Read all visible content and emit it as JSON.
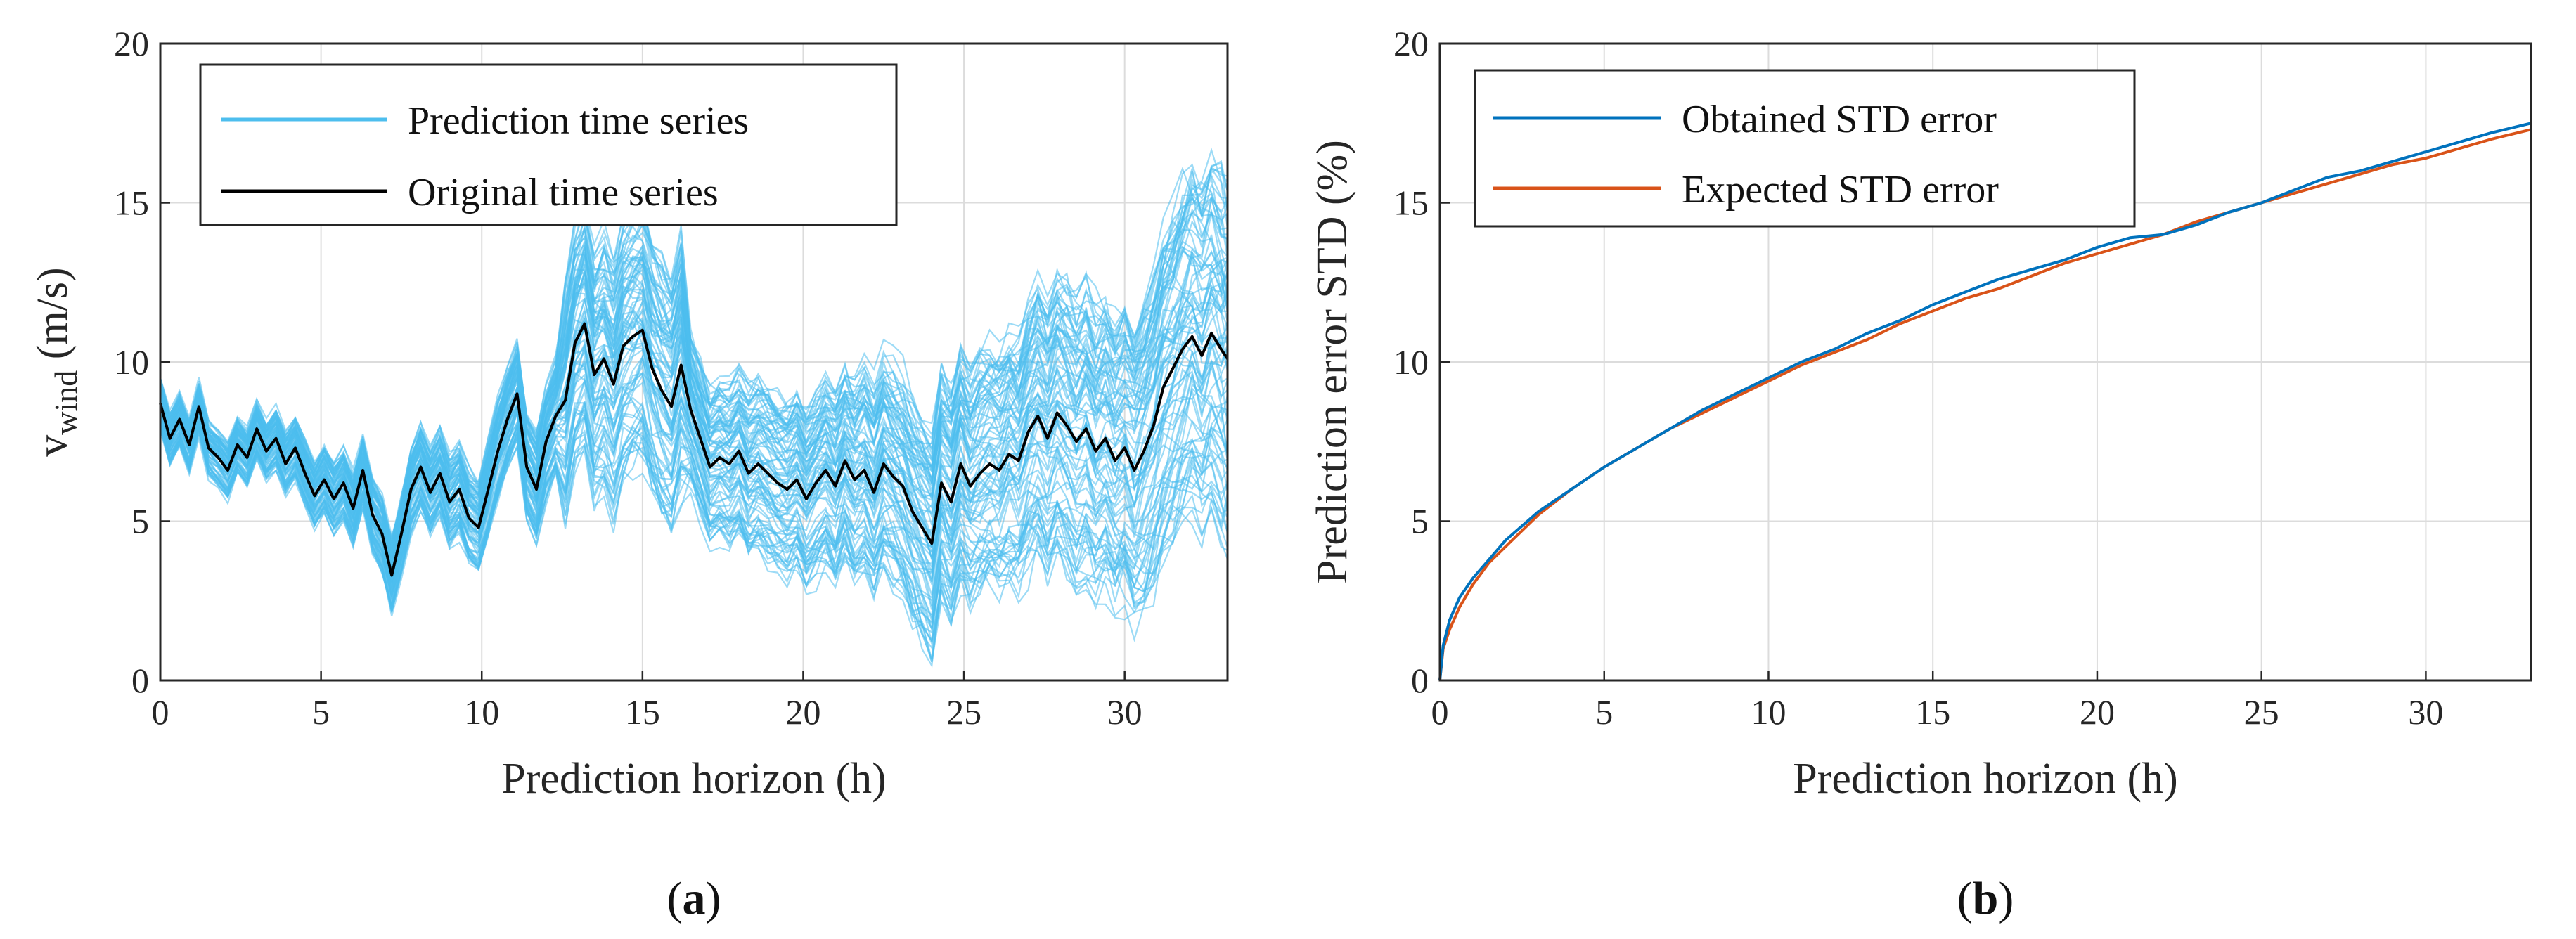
{
  "colors": {
    "prediction": "#4dbeee",
    "original": "#000000",
    "obtained": "#0072bd",
    "expected": "#d95319",
    "grid": "#dcdcdc",
    "axis": "#262626"
  },
  "chart_data": [
    {
      "type": "line",
      "panel_label": {
        "open": "(",
        "letter": "a",
        "close": ")"
      },
      "xlabel": "Prediction horizon (h)",
      "ylabel": {
        "main": "v",
        "sub": "wind",
        "unit": " (m/s)"
      },
      "xlim": [
        0,
        33.2
      ],
      "ylim": [
        0,
        20
      ],
      "xticks": [
        0,
        5,
        10,
        15,
        20,
        25,
        30
      ],
      "yticks": [
        0,
        5,
        10,
        15,
        20
      ],
      "grid": true,
      "legend_position": "top-left",
      "series": [
        {
          "name": "Prediction time series",
          "color_key": "prediction",
          "description_values": "ensemble of ~200 predicted trajectories spreading around the original series; spread grows with horizon (about +/-1 m/s near 0 h to +/-6 m/s near 33 h)"
        },
        {
          "name": "Original time series",
          "color_key": "original",
          "x": [
            0,
            0.3,
            0.6,
            0.9,
            1.2,
            1.5,
            1.8,
            2.1,
            2.4,
            2.7,
            3.0,
            3.3,
            3.6,
            3.9,
            4.2,
            4.5,
            4.8,
            5.1,
            5.4,
            5.7,
            6.0,
            6.3,
            6.6,
            6.9,
            7.2,
            7.5,
            7.8,
            8.1,
            8.4,
            8.7,
            9.0,
            9.3,
            9.6,
            9.9,
            10.2,
            10.5,
            10.8,
            11.1,
            11.4,
            11.7,
            12.0,
            12.3,
            12.6,
            12.9,
            13.2,
            13.5,
            13.8,
            14.1,
            14.4,
            14.7,
            15.0,
            15.3,
            15.6,
            15.9,
            16.2,
            16.5,
            16.8,
            17.1,
            17.4,
            17.7,
            18.0,
            18.3,
            18.6,
            18.9,
            19.2,
            19.5,
            19.8,
            20.1,
            20.4,
            20.7,
            21.0,
            21.3,
            21.6,
            21.9,
            22.2,
            22.5,
            22.8,
            23.1,
            23.4,
            23.7,
            24.0,
            24.3,
            24.6,
            24.9,
            25.2,
            25.5,
            25.8,
            26.1,
            26.4,
            26.7,
            27.0,
            27.3,
            27.6,
            27.9,
            28.2,
            28.5,
            28.8,
            29.1,
            29.4,
            29.7,
            30.0,
            30.3,
            30.6,
            30.9,
            31.2,
            31.5,
            31.8,
            32.1,
            32.4,
            32.7,
            33.0,
            33.2
          ],
          "values": [
            8.7,
            7.6,
            8.2,
            7.4,
            8.6,
            7.3,
            7.0,
            6.6,
            7.4,
            7.0,
            7.9,
            7.2,
            7.6,
            6.8,
            7.3,
            6.5,
            5.8,
            6.3,
            5.7,
            6.2,
            5.4,
            6.6,
            5.2,
            4.6,
            3.3,
            4.6,
            6.0,
            6.7,
            5.9,
            6.5,
            5.6,
            6.0,
            5.1,
            4.8,
            6.0,
            7.2,
            8.2,
            9.0,
            6.7,
            6.0,
            7.5,
            8.3,
            8.8,
            10.6,
            11.2,
            9.6,
            10.1,
            9.3,
            10.5,
            10.8,
            11.0,
            9.8,
            9.1,
            8.6,
            9.9,
            8.5,
            7.6,
            6.7,
            7.0,
            6.8,
            7.2,
            6.5,
            6.8,
            6.5,
            6.2,
            6.0,
            6.3,
            5.7,
            6.2,
            6.6,
            6.1,
            6.9,
            6.3,
            6.6,
            5.9,
            6.8,
            6.4,
            6.1,
            5.3,
            4.8,
            4.3,
            6.2,
            5.6,
            6.8,
            6.1,
            6.5,
            6.8,
            6.6,
            7.1,
            6.9,
            7.8,
            8.3,
            7.6,
            8.4,
            8.0,
            7.5,
            7.9,
            7.2,
            7.6,
            6.9,
            7.3,
            6.6,
            7.2,
            8.0,
            9.2,
            9.8,
            10.4,
            10.8,
            10.2,
            10.9,
            10.4,
            10.1
          ]
        }
      ]
    },
    {
      "type": "line",
      "panel_label": {
        "open": "(",
        "letter": "b",
        "close": ")"
      },
      "xlabel": "Prediction horizon (h)",
      "ylabel": "Prediction error STD (%)",
      "xlim": [
        0,
        33.2
      ],
      "ylim": [
        0,
        20
      ],
      "xticks": [
        0,
        5,
        10,
        15,
        20,
        25,
        30
      ],
      "yticks": [
        0,
        5,
        10,
        15,
        20
      ],
      "grid": true,
      "legend_position": "top-left",
      "series": [
        {
          "name": "Obtained STD error",
          "color_key": "obtained",
          "x": [
            0,
            0.1,
            0.3,
            0.6,
            1,
            1.5,
            2,
            3,
            4,
            5,
            6,
            7,
            8,
            9,
            10,
            11,
            12,
            13,
            14,
            15,
            16,
            17,
            18,
            19,
            20,
            21,
            22,
            23,
            24,
            25,
            26,
            27,
            28,
            29,
            30,
            31,
            32,
            33.2
          ],
          "values": [
            0,
            1.1,
            1.9,
            2.6,
            3.2,
            3.8,
            4.4,
            5.3,
            6.0,
            6.7,
            7.3,
            7.9,
            8.5,
            9.0,
            9.5,
            10.0,
            10.4,
            10.9,
            11.3,
            11.8,
            12.2,
            12.6,
            12.9,
            13.2,
            13.6,
            13.9,
            14.0,
            14.3,
            14.7,
            15.0,
            15.4,
            15.8,
            16.0,
            16.3,
            16.6,
            16.9,
            17.2,
            17.5
          ]
        },
        {
          "name": "Expected STD error",
          "color_key": "expected",
          "x": [
            0,
            0.1,
            0.3,
            0.6,
            1,
            1.5,
            2,
            3,
            4,
            5,
            6,
            7,
            8,
            9,
            10,
            11,
            12,
            13,
            14,
            15,
            16,
            17,
            18,
            19,
            20,
            21,
            22,
            23,
            24,
            25,
            26,
            27,
            28,
            29,
            30,
            31,
            32,
            33.2
          ],
          "values": [
            0,
            1.0,
            1.6,
            2.3,
            3.0,
            3.7,
            4.2,
            5.2,
            6.0,
            6.7,
            7.3,
            7.9,
            8.4,
            8.9,
            9.4,
            9.9,
            10.3,
            10.7,
            11.2,
            11.6,
            12.0,
            12.3,
            12.7,
            13.1,
            13.4,
            13.7,
            14.0,
            14.4,
            14.7,
            15.0,
            15.3,
            15.6,
            15.9,
            16.2,
            16.4,
            16.7,
            17.0,
            17.3
          ]
        }
      ]
    }
  ]
}
